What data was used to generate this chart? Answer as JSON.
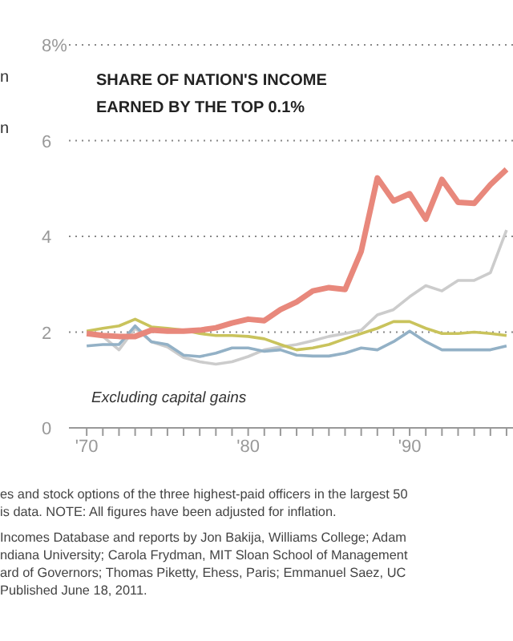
{
  "chart_data": {
    "type": "line",
    "title": "SHARE OF NATION'S INCOME EARNED BY THE TOP 0.1%",
    "x": [
      1970,
      1971,
      1972,
      1973,
      1974,
      1975,
      1976,
      1977,
      1978,
      1979,
      1980,
      1981,
      1982,
      1983,
      1984,
      1985,
      1986,
      1987,
      1988,
      1989,
      1990,
      1991,
      1992,
      1993,
      1994,
      1995,
      1996
    ],
    "series": [
      {
        "color": "#cccccc",
        "values": [
          2.0,
          1.91,
          1.63,
          2.08,
          1.8,
          1.69,
          1.47,
          1.38,
          1.33,
          1.38,
          1.49,
          1.63,
          1.69,
          1.74,
          1.82,
          1.91,
          1.97,
          2.04,
          2.36,
          2.47,
          2.74,
          2.97,
          2.86,
          3.08,
          3.08,
          3.24,
          4.13
        ]
      },
      {
        "color": "#93b1c6",
        "values": [
          1.71,
          1.74,
          1.74,
          2.13,
          1.8,
          1.74,
          1.52,
          1.49,
          1.56,
          1.67,
          1.67,
          1.6,
          1.63,
          1.52,
          1.5,
          1.5,
          1.56,
          1.67,
          1.63,
          1.8,
          2.02,
          1.8,
          1.63,
          1.63,
          1.63,
          1.63,
          1.71
        ]
      },
      {
        "color": "#c9c35c",
        "values": [
          2.02,
          2.08,
          2.13,
          2.27,
          2.11,
          2.08,
          2.04,
          1.97,
          1.93,
          1.93,
          1.91,
          1.86,
          1.74,
          1.63,
          1.67,
          1.74,
          1.86,
          1.97,
          2.08,
          2.22,
          2.22,
          2.08,
          1.97,
          1.97,
          2.0,
          1.97,
          1.93
        ]
      },
      {
        "color": "#e8887c",
        "values": [
          1.97,
          1.93,
          1.91,
          1.91,
          2.04,
          2.02,
          2.02,
          2.04,
          2.09,
          2.19,
          2.27,
          2.24,
          2.47,
          2.63,
          2.86,
          2.93,
          2.89,
          3.69,
          5.22,
          4.74,
          4.89,
          4.36,
          5.19,
          4.71,
          4.69,
          5.08,
          5.4
        ]
      }
    ],
    "xlim": [
      1968.9,
      1996.4
    ],
    "ylim": [
      0,
      8
    ],
    "xticks": [
      {
        "value": 1970,
        "label": "'70"
      },
      {
        "value": 1971,
        "label": null
      },
      {
        "value": 1972,
        "label": null
      },
      {
        "value": 1973,
        "label": null
      },
      {
        "value": 1974,
        "label": null
      },
      {
        "value": 1975,
        "label": null
      },
      {
        "value": 1976,
        "label": null
      },
      {
        "value": 1977,
        "label": null
      },
      {
        "value": 1978,
        "label": null
      },
      {
        "value": 1979,
        "label": null
      },
      {
        "value": 1980,
        "label": "'80"
      },
      {
        "value": 1981,
        "label": null
      },
      {
        "value": 1982,
        "label": null
      },
      {
        "value": 1983,
        "label": null
      },
      {
        "value": 1984,
        "label": null
      },
      {
        "value": 1985,
        "label": null
      },
      {
        "value": 1986,
        "label": null
      },
      {
        "value": 1987,
        "label": null
      },
      {
        "value": 1988,
        "label": null
      },
      {
        "value": 1989,
        "label": null
      },
      {
        "value": 1990,
        "label": "'90"
      },
      {
        "value": 1991,
        "label": null
      },
      {
        "value": 1992,
        "label": null
      },
      {
        "value": 1993,
        "label": null
      },
      {
        "value": 1994,
        "label": null
      },
      {
        "value": 1995,
        "label": null
      },
      {
        "value": 1996,
        "label": null
      }
    ],
    "yticks": [
      0,
      2,
      4,
      6,
      {
        "value": 8,
        "label": "8%"
      }
    ],
    "grid": "y",
    "legend": false,
    "marker": "none",
    "line_style": "solid",
    "annotations": [
      "Excluding capital gains",
      "n",
      "n",
      "es and stock options of the three highest-paid officers in the largest 50",
      "is data. NOTE: All figures have been adjusted for inflation.",
      "Incomes Database and reports by Jon Bakija, Williams College; Adam",
      "ndiana University; Carola Frydman, MIT Sloan School of Management",
      "ard of Governors; Thomas Piketty, Ehess, Paris; Emmanuel Saez, UC",
      "Published June 18, 2011."
    ]
  }
}
